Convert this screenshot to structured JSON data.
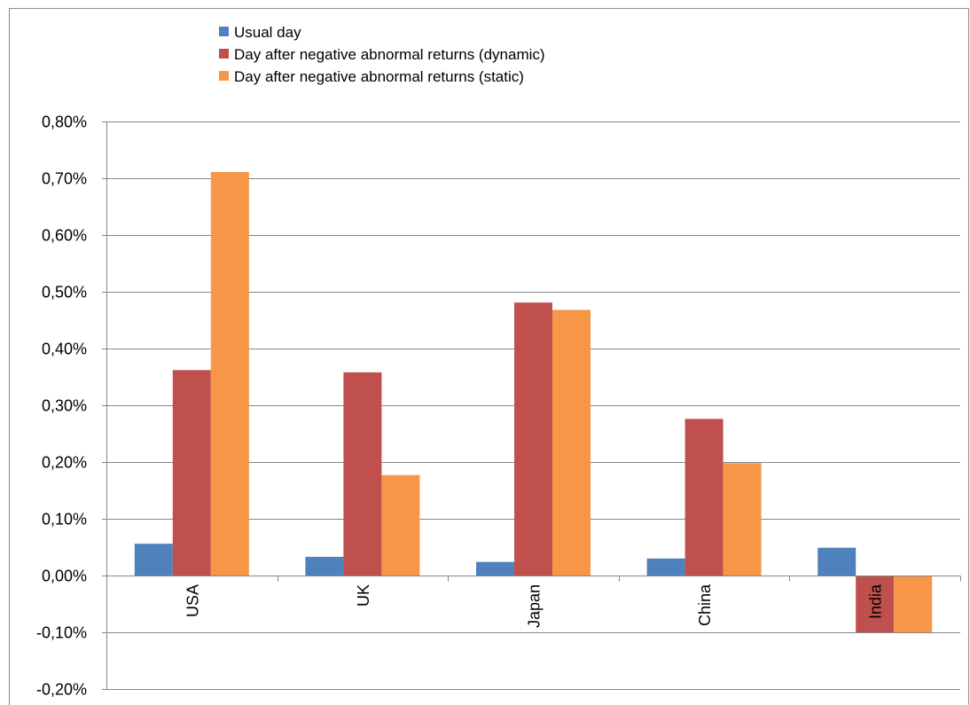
{
  "chart_data": {
    "type": "bar",
    "categories": [
      "USA",
      "UK",
      "Japan",
      "China",
      "India"
    ],
    "series": [
      {
        "name": "Usual day",
        "color": "#4f81bd",
        "values": [
          0.056,
          0.033,
          0.024,
          0.03,
          0.049
        ]
      },
      {
        "name": "Day after negative abnormal returns (dynamic)",
        "color": "#c0504d",
        "values": [
          0.362,
          0.358,
          0.481,
          0.276,
          -0.1
        ]
      },
      {
        "name": "Day after negative abnormal returns (static)",
        "color": "#f79646",
        "values": [
          0.711,
          0.177,
          0.468,
          0.198,
          -0.1
        ]
      }
    ],
    "ylim": [
      -0.2,
      0.8
    ],
    "ytick_step": 0.1,
    "y_tick_labels": [
      "-0,20%",
      "-0,10%",
      "0,00%",
      "0,10%",
      "0,20%",
      "0,30%",
      "0,40%",
      "0,50%",
      "0,60%",
      "0,70%",
      "0,80%"
    ],
    "unit": "%",
    "grid": true,
    "legend_position": "top",
    "title": "",
    "xlabel": "",
    "ylabel": ""
  }
}
